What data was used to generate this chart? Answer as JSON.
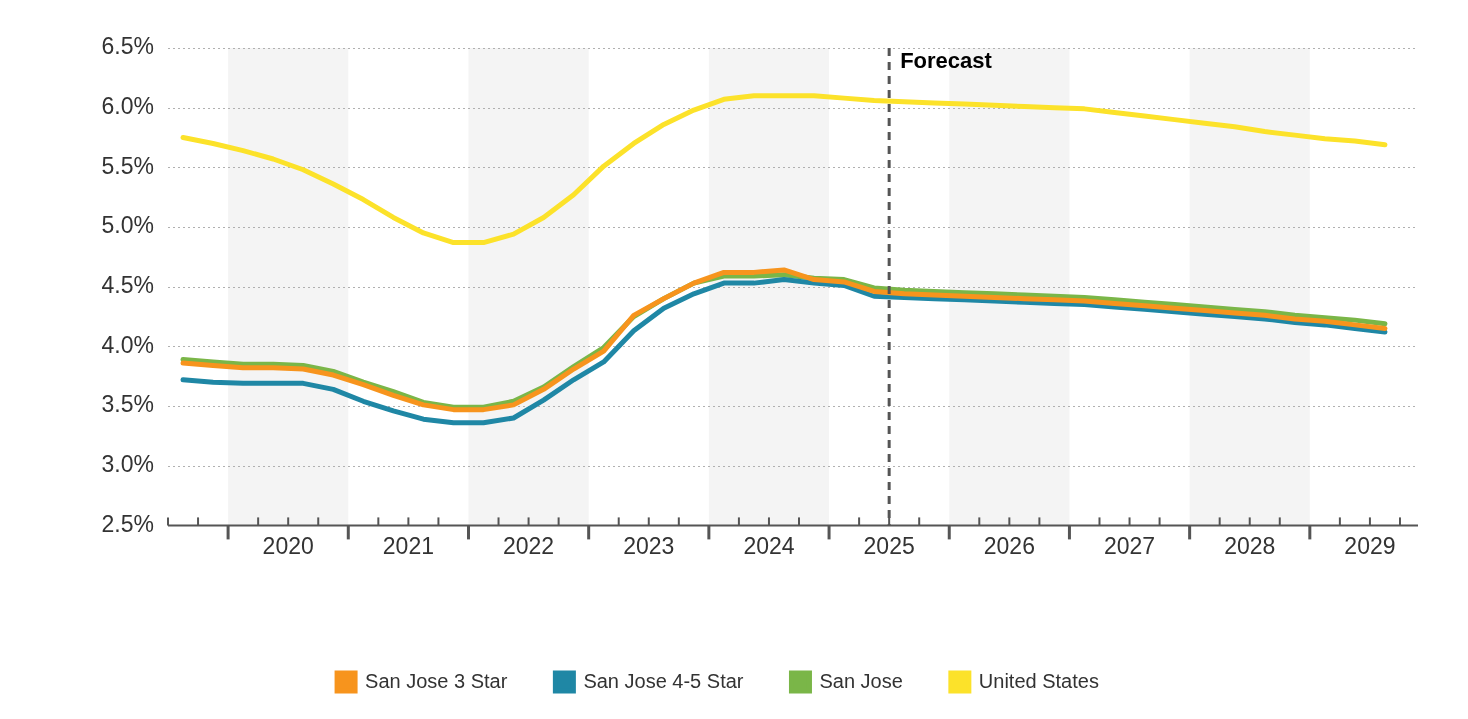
{
  "chart_data": {
    "type": "line",
    "x": [
      2019.625,
      2019.875,
      2020.125,
      2020.375,
      2020.625,
      2020.875,
      2021.125,
      2021.375,
      2021.625,
      2021.875,
      2022.125,
      2022.375,
      2022.625,
      2022.875,
      2023.125,
      2023.375,
      2023.625,
      2023.875,
      2024.125,
      2024.375,
      2024.625,
      2024.875,
      2025.125,
      2025.375,
      2025.625,
      2025.875,
      2026.125,
      2026.375,
      2026.625,
      2026.875,
      2027.125,
      2027.375,
      2027.625,
      2027.875,
      2028.125,
      2028.375,
      2028.625,
      2028.875,
      2029.125,
      2029.375,
      2029.625
    ],
    "series": [
      {
        "name": "San Jose 3 Star",
        "color": "#f7941d",
        "values": [
          3.86,
          3.84,
          3.82,
          3.82,
          3.81,
          3.76,
          3.68,
          3.59,
          3.51,
          3.47,
          3.47,
          3.51,
          3.64,
          3.81,
          3.96,
          4.26,
          4.4,
          4.53,
          4.62,
          4.62,
          4.64,
          4.56,
          4.54,
          4.46,
          4.44,
          4.43,
          4.42,
          4.41,
          4.4,
          4.39,
          4.38,
          4.36,
          4.34,
          4.32,
          4.3,
          4.28,
          4.26,
          4.23,
          4.21,
          4.18,
          4.15
        ]
      },
      {
        "name": "San Jose 4-5 Star",
        "color": "#1f87a5",
        "values": [
          3.72,
          3.7,
          3.69,
          3.69,
          3.69,
          3.64,
          3.54,
          3.46,
          3.39,
          3.36,
          3.36,
          3.4,
          3.55,
          3.72,
          3.87,
          4.13,
          4.32,
          4.44,
          4.53,
          4.53,
          4.56,
          4.53,
          4.51,
          4.42,
          4.41,
          4.4,
          4.39,
          4.38,
          4.37,
          4.36,
          4.35,
          4.33,
          4.31,
          4.29,
          4.27,
          4.25,
          4.23,
          4.2,
          4.18,
          4.15,
          4.12
        ]
      },
      {
        "name": "San Jose",
        "color": "#7ab648",
        "values": [
          3.89,
          3.87,
          3.85,
          3.85,
          3.84,
          3.79,
          3.7,
          3.62,
          3.53,
          3.49,
          3.49,
          3.54,
          3.66,
          3.83,
          3.99,
          4.25,
          4.4,
          4.53,
          4.59,
          4.59,
          4.6,
          4.57,
          4.56,
          4.49,
          4.47,
          4.46,
          4.45,
          4.44,
          4.43,
          4.42,
          4.41,
          4.39,
          4.37,
          4.35,
          4.33,
          4.31,
          4.29,
          4.26,
          4.24,
          4.22,
          4.19
        ]
      },
      {
        "name": "United States",
        "color": "#fce22a",
        "values": [
          5.75,
          5.7,
          5.64,
          5.57,
          5.48,
          5.36,
          5.23,
          5.08,
          4.95,
          4.87,
          4.87,
          4.94,
          5.08,
          5.27,
          5.51,
          5.7,
          5.86,
          5.98,
          6.07,
          6.1,
          6.1,
          6.1,
          6.08,
          6.06,
          6.05,
          6.04,
          6.03,
          6.02,
          6.01,
          6.0,
          5.99,
          5.96,
          5.93,
          5.9,
          5.87,
          5.84,
          5.8,
          5.77,
          5.74,
          5.72,
          5.69
        ]
      }
    ],
    "xlim": [
      2019.5,
      2029.9
    ],
    "xticks": [
      {
        "value": 2020.5,
        "label": "2020"
      },
      {
        "value": 2021.5,
        "label": "2021"
      },
      {
        "value": 2022.5,
        "label": "2022"
      },
      {
        "value": 2023.5,
        "label": "2023"
      },
      {
        "value": 2024.5,
        "label": "2024"
      },
      {
        "value": 2025.5,
        "label": "2025"
      },
      {
        "value": 2026.5,
        "label": "2026"
      },
      {
        "value": 2027.5,
        "label": "2027"
      },
      {
        "value": 2028.5,
        "label": "2028"
      },
      {
        "value": 2029.5,
        "label": "2029"
      }
    ],
    "ylim": [
      2.5,
      6.5
    ],
    "yticks": [
      {
        "value": 2.5,
        "label": "2.5%"
      },
      {
        "value": 3,
        "label": "3.0%"
      },
      {
        "value": 3.5,
        "label": "3.5%"
      },
      {
        "value": 4,
        "label": "4.0%"
      },
      {
        "value": 4.5,
        "label": "4.5%"
      },
      {
        "value": 5,
        "label": "5.0%"
      },
      {
        "value": 5.5,
        "label": "5.5%"
      },
      {
        "value": 6,
        "label": "6.0%"
      },
      {
        "value": 6.5,
        "label": "6.5%"
      }
    ],
    "grid": "y",
    "legend": "bottom",
    "marker": "none",
    "line_style": "solid",
    "bands": [
      {
        "axis": "x",
        "from": 2020,
        "to": 2021,
        "color": "#f4f4f4"
      },
      {
        "axis": "x",
        "from": 2022,
        "to": 2023,
        "color": "#f4f4f4"
      },
      {
        "axis": "x",
        "from": 2024,
        "to": 2025,
        "color": "#f4f4f4"
      },
      {
        "axis": "x",
        "from": 2026,
        "to": 2027,
        "color": "#f4f4f4"
      },
      {
        "axis": "x",
        "from": 2028,
        "to": 2029,
        "color": "#f4f4f4"
      }
    ],
    "ref_lines": [
      {
        "axis": "x",
        "value": 2025.5,
        "label": "Forecast",
        "color": "#555555",
        "line_style": "dashed"
      }
    ]
  }
}
